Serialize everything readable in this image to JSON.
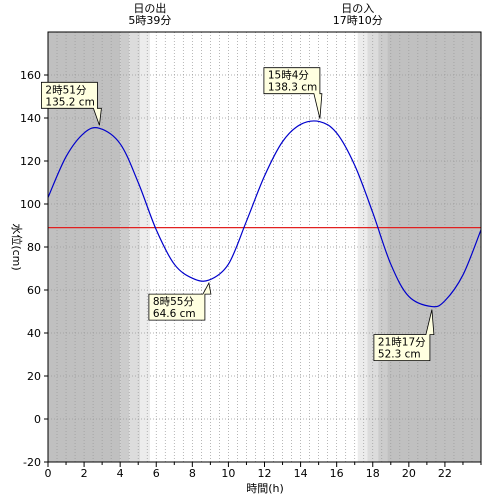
{
  "chart_data": {
    "type": "line",
    "title": "",
    "xlabel": "時間(h)",
    "ylabel": "水位(cm)",
    "xlim": [
      0,
      24
    ],
    "ylim": [
      -20,
      180
    ],
    "x_ticks": [
      0,
      2,
      4,
      6,
      8,
      10,
      12,
      14,
      16,
      18,
      20,
      22
    ],
    "y_ticks": [
      -20,
      0,
      20,
      40,
      60,
      80,
      100,
      120,
      140,
      160
    ],
    "grid": true,
    "reference_line": {
      "y": 89,
      "color": "#e02020"
    },
    "series": [
      {
        "color": "#0000cc",
        "points": [
          [
            0,
            103
          ],
          [
            1,
            122
          ],
          [
            2,
            133
          ],
          [
            2.85,
            135.2
          ],
          [
            4,
            128
          ],
          [
            5,
            110
          ],
          [
            6,
            88
          ],
          [
            7,
            72
          ],
          [
            8,
            65.5
          ],
          [
            8.92,
            64.6
          ],
          [
            10,
            72
          ],
          [
            11,
            92
          ],
          [
            12,
            113
          ],
          [
            13,
            129
          ],
          [
            14,
            137
          ],
          [
            15.07,
            138.3
          ],
          [
            16,
            133
          ],
          [
            17,
            118
          ],
          [
            18,
            96
          ],
          [
            19,
            72
          ],
          [
            20,
            57
          ],
          [
            21.28,
            52.3
          ],
          [
            22,
            55
          ],
          [
            23,
            67
          ],
          [
            24,
            88
          ]
        ]
      }
    ],
    "annotations": [
      {
        "time": "2時51分",
        "level": "135.2 cm",
        "x": 2.85,
        "y": 135.2
      },
      {
        "time": "8時55分",
        "level": "64.6 cm",
        "x": 8.92,
        "y": 64.6
      },
      {
        "time": "15時4分",
        "level": "138.3 cm",
        "x": 15.07,
        "y": 138.3
      },
      {
        "time": "21時17分",
        "level": "52.3 cm",
        "x": 21.28,
        "y": 52.3
      }
    ],
    "sun_events": [
      {
        "label": "日の出",
        "time": "5時39分",
        "hour": 5.65
      },
      {
        "label": "日の入",
        "time": "17時10分",
        "hour": 17.17
      }
    ],
    "twilight_shading": [
      {
        "from": 0,
        "to": 4.0,
        "color": "#c0c0c0"
      },
      {
        "from": 4.0,
        "to": 4.5,
        "color": "#cccccc"
      },
      {
        "from": 4.5,
        "to": 5.1,
        "color": "#dcdcdc"
      },
      {
        "from": 5.1,
        "to": 5.65,
        "color": "#ececec"
      },
      {
        "from": 17.17,
        "to": 17.7,
        "color": "#ececec"
      },
      {
        "from": 17.7,
        "to": 18.3,
        "color": "#dcdcdc"
      },
      {
        "from": 18.3,
        "to": 18.8,
        "color": "#cccccc"
      },
      {
        "from": 18.8,
        "to": 24,
        "color": "#c0c0c0"
      }
    ]
  }
}
